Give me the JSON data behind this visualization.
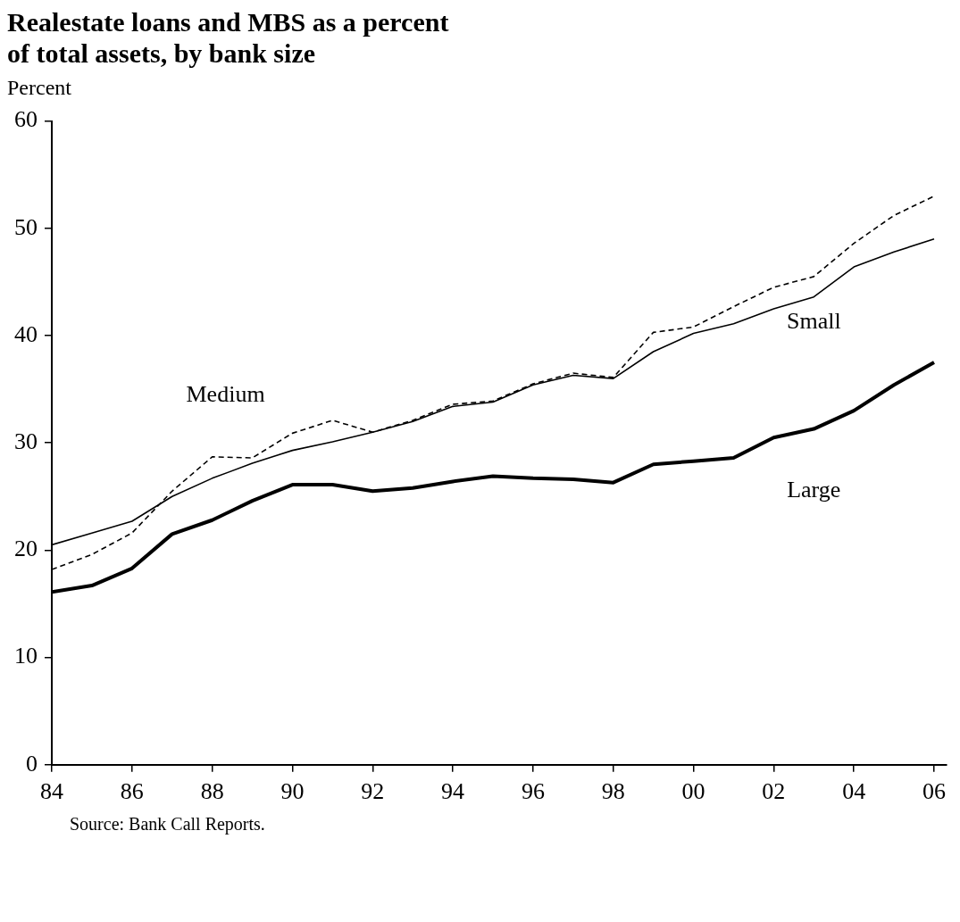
{
  "chart_data": {
    "type": "line",
    "title": "Realestate loans and MBS as a percent of total assets, by bank size",
    "ylabel": "Percent",
    "annotations": [
      "Source: Bank Call Reports."
    ],
    "x": [
      1984,
      1985,
      1986,
      1987,
      1988,
      1989,
      1990,
      1991,
      1992,
      1993,
      1994,
      1995,
      1996,
      1997,
      1998,
      1999,
      2000,
      2001,
      2002,
      2003,
      2004,
      2005,
      2006
    ],
    "series": [
      {
        "name": "Small",
        "color": "#000000",
        "line_style": "solid",
        "values": [
          20.5,
          21.6,
          22.7,
          25.0,
          26.7,
          28.1,
          29.3,
          30.1,
          31.0,
          32.0,
          33.4,
          33.8,
          35.4,
          36.3,
          36.0,
          38.5,
          40.2,
          41.1,
          42.5,
          43.6,
          46.4,
          47.8,
          49.0
        ]
      },
      {
        "name": "Medium",
        "color": "#000000",
        "line_style": "dashed",
        "values": [
          18.2,
          19.6,
          21.6,
          25.5,
          28.7,
          28.6,
          30.9,
          32.1,
          31.0,
          32.1,
          33.6,
          33.9,
          35.5,
          36.5,
          36.1,
          40.3,
          40.8,
          42.7,
          44.5,
          45.5,
          48.6,
          51.2,
          53.0
        ]
      },
      {
        "name": "Large",
        "color": "#000000",
        "line_style": "solid",
        "values": [
          16.1,
          16.7,
          18.3,
          21.5,
          22.8,
          24.6,
          26.1,
          26.1,
          25.5,
          25.8,
          26.4,
          26.9,
          26.7,
          26.6,
          26.3,
          28.0,
          28.3,
          28.6,
          30.5,
          31.3,
          33.0,
          35.4,
          37.5
        ]
      }
    ],
    "xlim": [
      1984,
      2006.3
    ],
    "ylim": [
      0,
      60
    ],
    "xticks": [
      {
        "value": 1984,
        "label": "84"
      },
      {
        "value": 1986,
        "label": "86"
      },
      {
        "value": 1988,
        "label": "88"
      },
      {
        "value": 1990,
        "label": "90"
      },
      {
        "value": 1992,
        "label": "92"
      },
      {
        "value": 1994,
        "label": "94"
      },
      {
        "value": 1996,
        "label": "96"
      },
      {
        "value": 1998,
        "label": "98"
      },
      {
        "value": 2000,
        "label": "00"
      },
      {
        "value": 2002,
        "label": "02"
      },
      {
        "value": 2004,
        "label": "04"
      },
      {
        "value": 2006,
        "label": "06"
      }
    ],
    "yticks": [
      0,
      10,
      20,
      30,
      40,
      50,
      60
    ],
    "grid": false,
    "legend": false,
    "marker": "none"
  }
}
